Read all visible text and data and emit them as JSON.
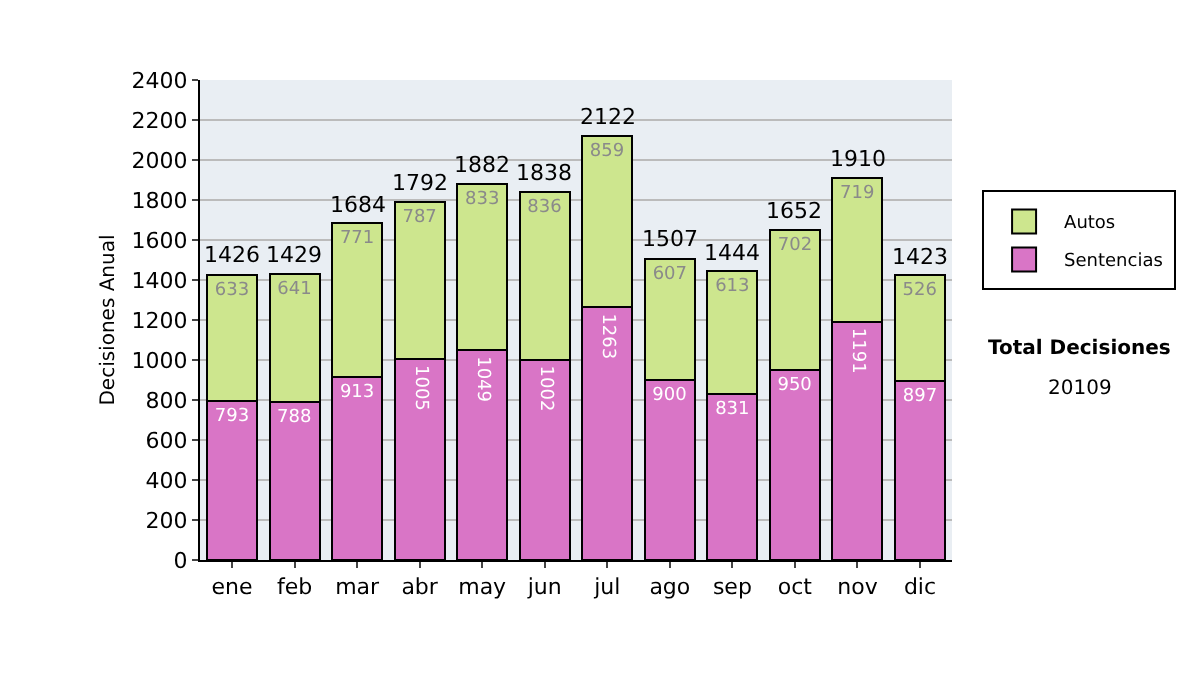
{
  "chart_data": {
    "type": "bar",
    "stacked": true,
    "categories": [
      "ene",
      "feb",
      "mar",
      "abr",
      "may",
      "jun",
      "jul",
      "ago",
      "sep",
      "oct",
      "nov",
      "dic"
    ],
    "series": [
      {
        "name": "Sentencias",
        "color": "#d975c6",
        "values": [
          793,
          788,
          913,
          1005,
          1049,
          1002,
          1263,
          900,
          831,
          950,
          1191,
          897
        ]
      },
      {
        "name": "Autos",
        "color": "#cde68e",
        "values": [
          633,
          641,
          771,
          787,
          833,
          836,
          859,
          607,
          613,
          702,
          719,
          526
        ]
      }
    ],
    "totals": [
      "1426",
      "1429",
      "1684",
      "1792",
      "1882",
      "1838",
      "2122",
      "1507",
      "1444",
      "1652",
      "1910",
      "1423"
    ],
    "ylabel": "Decisiones Anual",
    "ylim": [
      0,
      2400
    ],
    "yticks": [
      0,
      200,
      400,
      600,
      800,
      1000,
      1200,
      1400,
      1600,
      1800,
      2000,
      2200,
      2400
    ],
    "grid": "y",
    "legend": "right",
    "data_labels": true,
    "annotations": [
      "Total Decisiones",
      "20109"
    ]
  }
}
